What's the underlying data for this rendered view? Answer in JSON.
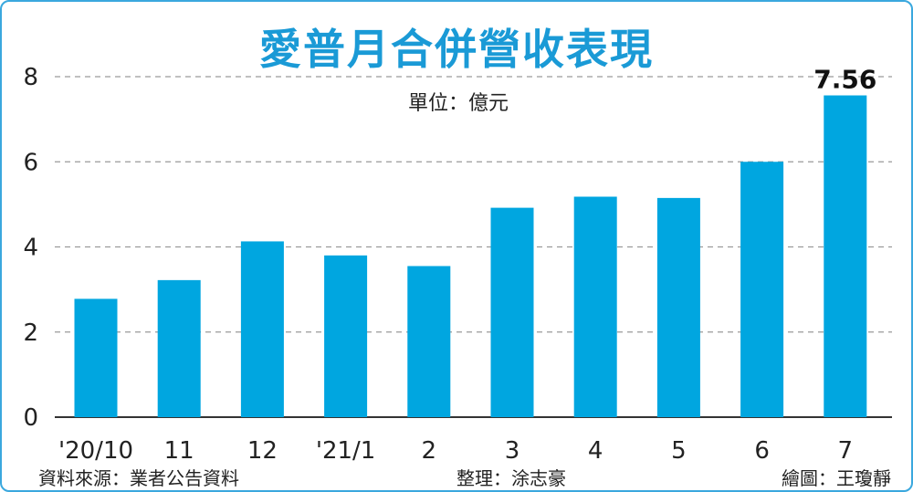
{
  "chart_data": {
    "type": "bar",
    "title": "愛普月合併營收表現",
    "unit": "單位：億元",
    "categories": [
      "'20/10",
      "11",
      "12",
      "'21/1",
      "2",
      "3",
      "4",
      "5",
      "6",
      "7"
    ],
    "values": [
      2.78,
      3.22,
      4.13,
      3.8,
      3.55,
      4.92,
      5.18,
      5.15,
      6.0,
      7.56
    ],
    "data_labels": {
      "9": "7.56"
    },
    "ylim": [
      0,
      8
    ],
    "yticks": [
      "0",
      "2",
      "4",
      "6",
      "8"
    ],
    "ytick_values": [
      0,
      2,
      4,
      6,
      8
    ],
    "grid": true,
    "bar_color": "#00a6e0"
  },
  "footer": {
    "source": "資料來源：業者公告資料",
    "editor": "整理：涂志豪",
    "illustrator": "繪圖：王瓊靜"
  }
}
